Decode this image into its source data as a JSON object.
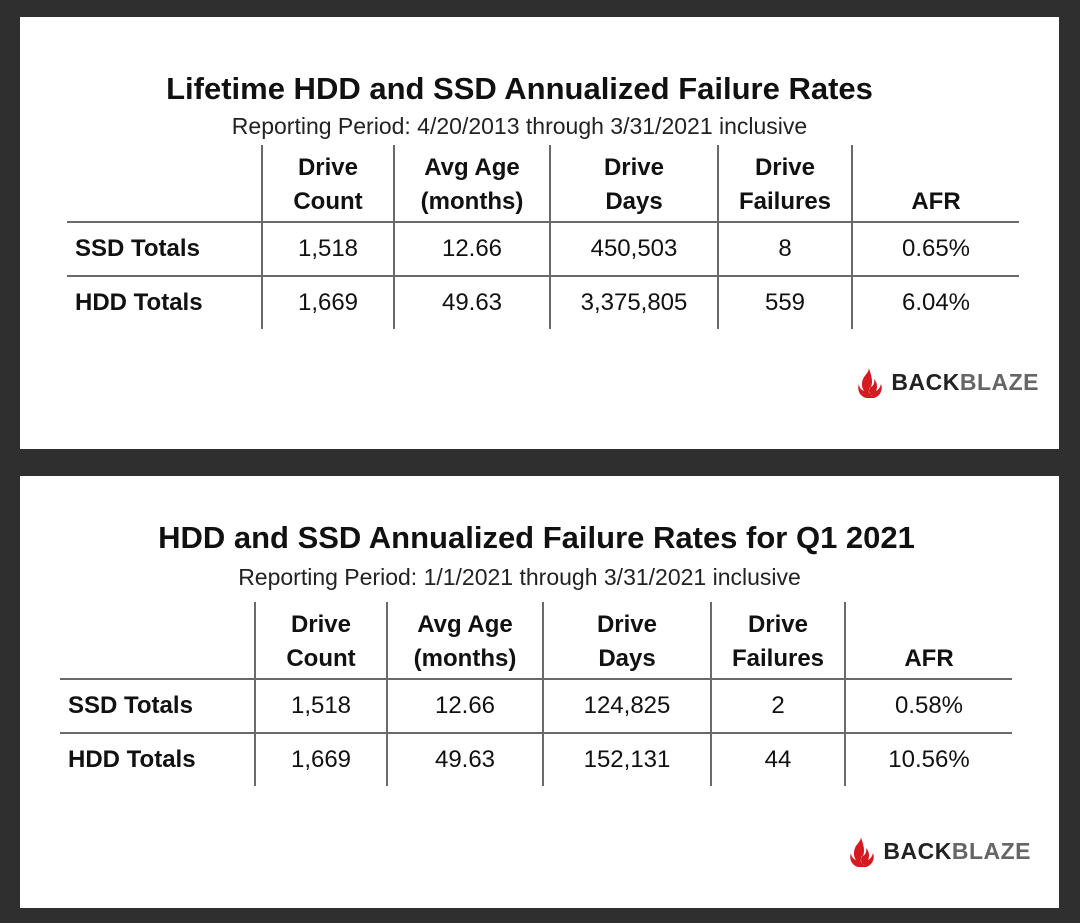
{
  "panels": [
    {
      "title": "Lifetime HDD and SSD Annualized Failure Rates",
      "subtitle": "Reporting Period: 4/20/2013 through 3/31/2021 inclusive",
      "columns": [
        {
          "line1": "Drive",
          "line2": "Count"
        },
        {
          "line1": "Avg Age",
          "line2": "(months)"
        },
        {
          "line1": "Drive",
          "line2": "Days"
        },
        {
          "line1": "Drive",
          "line2": "Failures"
        },
        {
          "line1": "",
          "line2": "AFR"
        }
      ],
      "rows": [
        {
          "label": "SSD Totals",
          "values": [
            "1,518",
            "12.66",
            "450,503",
            "8",
            "0.65%"
          ]
        },
        {
          "label": "HDD Totals",
          "values": [
            "1,669",
            "49.63",
            "3,375,805",
            "559",
            "6.04%"
          ]
        }
      ],
      "logo": {
        "brand_strong": "BACK",
        "brand_light": "BLAZE",
        "icon": "flame-icon",
        "color": "#d71920"
      }
    },
    {
      "title": "HDD and SSD Annualized Failure Rates for Q1 2021",
      "subtitle": "Reporting Period: 1/1/2021 through 3/31/2021 inclusive",
      "columns": [
        {
          "line1": "Drive",
          "line2": "Count"
        },
        {
          "line1": "Avg Age",
          "line2": "(months)"
        },
        {
          "line1": "Drive",
          "line2": "Days"
        },
        {
          "line1": "Drive",
          "line2": "Failures"
        },
        {
          "line1": "",
          "line2": "AFR"
        }
      ],
      "rows": [
        {
          "label": "SSD Totals",
          "values": [
            "1,518",
            "12.66",
            "124,825",
            "2",
            "0.58%"
          ]
        },
        {
          "label": "HDD Totals",
          "values": [
            "1,669",
            "49.63",
            "152,131",
            "44",
            "10.56%"
          ]
        }
      ],
      "logo": {
        "brand_strong": "BACK",
        "brand_light": "BLAZE",
        "icon": "flame-icon",
        "color": "#d71920"
      }
    }
  ]
}
